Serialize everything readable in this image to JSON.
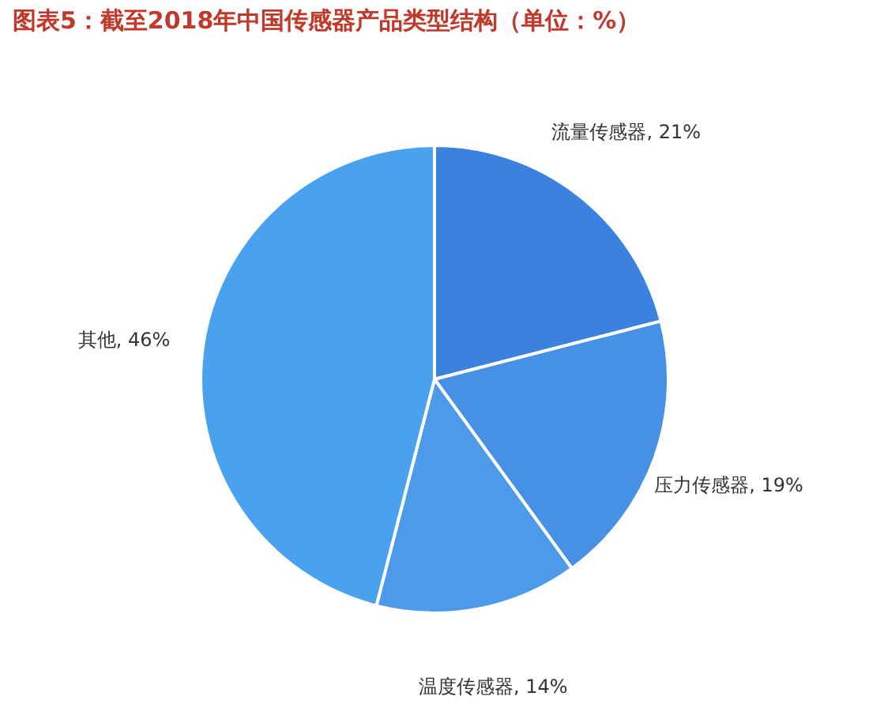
{
  "chart_data": {
    "type": "pie",
    "title": "图表5：截至2018年中国传感器产品类型结构（单位：%）",
    "categories": [
      "流量传感器",
      "压力传感器",
      "温度传感器",
      "其他"
    ],
    "values": [
      21,
      19,
      14,
      46
    ],
    "value_labels": [
      "21%",
      "19%",
      "14%",
      "46%"
    ],
    "colors": [
      "#3b82e0",
      "#4690e6",
      "#4d9ae9",
      "#4aa2ee"
    ]
  }
}
